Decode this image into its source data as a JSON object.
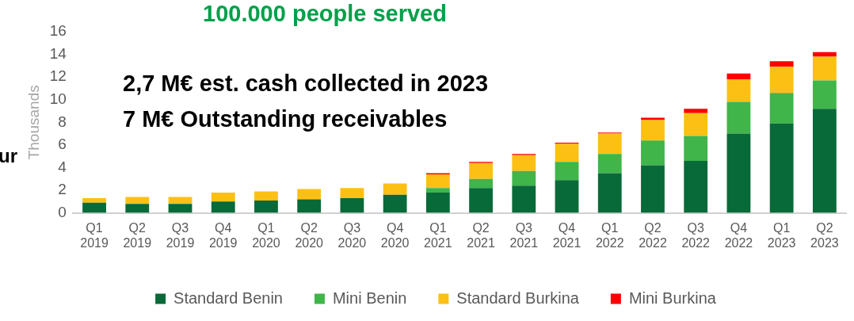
{
  "chart_data": {
    "type": "bar",
    "stacked": true,
    "title": "100.000 people served",
    "ylabel": "Thousands",
    "annotations": [
      "2,7 M€ est. cash collected in 2023",
      "7 M€ Outstanding receivables",
      "ur"
    ],
    "categories": [
      "Q1 2019",
      "Q2 2019",
      "Q3 2019",
      "Q4 2019",
      "Q1 2020",
      "Q2 2020",
      "Q3 2020",
      "Q4 2020",
      "Q1 2021",
      "Q2 2021",
      "Q3 2021",
      "Q4 2021",
      "Q1 2022",
      "Q2 2022",
      "Q3 2022",
      "Q4 2022",
      "Q1 2023",
      "Q2 2023"
    ],
    "series": [
      {
        "name": "Standard Benin",
        "color": "#086a38",
        "values": [
          0.9,
          0.8,
          0.8,
          1.0,
          1.1,
          1.2,
          1.3,
          1.6,
          1.8,
          2.2,
          2.4,
          2.9,
          3.5,
          4.2,
          4.6,
          7.0,
          7.9,
          9.2
        ]
      },
      {
        "name": "Mini Benin",
        "color": "#3fb54a",
        "values": [
          0,
          0,
          0,
          0,
          0,
          0,
          0,
          0,
          0.4,
          0.8,
          1.3,
          1.6,
          1.7,
          2.2,
          2.2,
          2.8,
          2.7,
          2.5
        ]
      },
      {
        "name": "Standard Burkina",
        "color": "#fcc015",
        "values": [
          0.4,
          0.6,
          0.6,
          0.8,
          0.8,
          0.9,
          0.9,
          1.0,
          1.2,
          1.4,
          1.4,
          1.6,
          1.8,
          1.8,
          2.0,
          2.0,
          2.3,
          2.1
        ]
      },
      {
        "name": "Mini Burkina",
        "color": "#ff0000",
        "values": [
          0,
          0,
          0,
          0,
          0,
          0,
          0,
          0,
          0.1,
          0.1,
          0.1,
          0.1,
          0.1,
          0.2,
          0.4,
          0.5,
          0.5,
          0.4
        ]
      }
    ],
    "ylim": [
      0,
      16
    ],
    "yticks": [
      0,
      2,
      4,
      6,
      8,
      10,
      12,
      14,
      16
    ],
    "grid": false,
    "legend": "bottom"
  }
}
